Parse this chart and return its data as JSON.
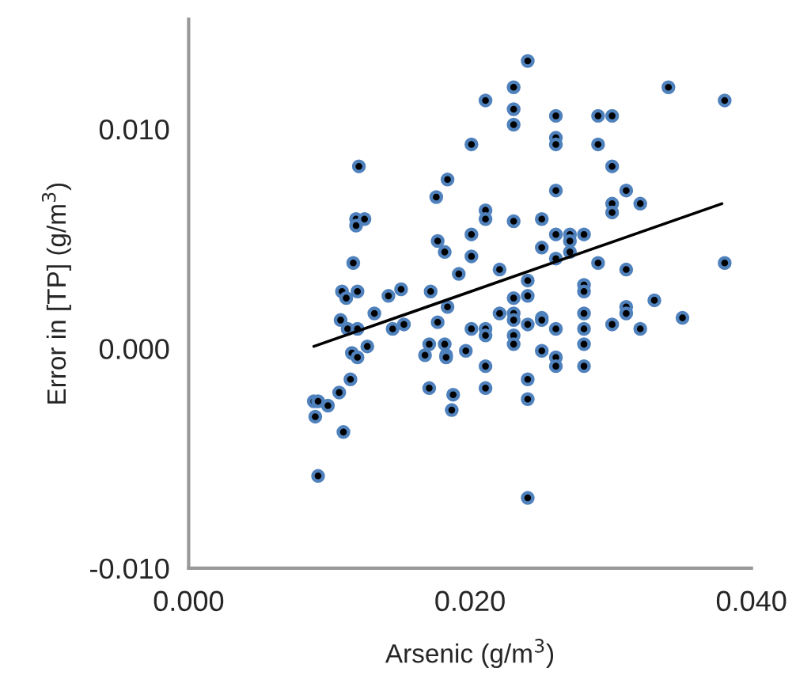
{
  "chart_data": {
    "type": "scatter",
    "xlabel": "Arsenic (g/m$^{3}$)",
    "ylabel": "Error in [TP] (g/m$^{3}$)",
    "xlim": [
      0,
      0.04
    ],
    "ylim": [
      -0.01,
      0.015
    ],
    "xticks": [
      {
        "value": 0,
        "label": "0.000"
      },
      {
        "value": 0.02,
        "label": "0.020"
      },
      {
        "value": 0.04,
        "label": "0.040"
      }
    ],
    "yticks": [
      {
        "value": -0.01,
        "label": "-0.010"
      },
      {
        "value": 0,
        "label": "0.000"
      },
      {
        "value": 0.01,
        "label": "0.010"
      }
    ],
    "grid": false,
    "legend": false,
    "marker": "circle",
    "series": [
      {
        "color": "#4f81bd",
        "x": [
          0.0241,
          0.0231,
          0.0341,
          0.0211,
          0.0381,
          0.0231,
          0.0231,
          0.0261,
          0.0291,
          0.0301,
          0.0201,
          0.0261,
          0.0261,
          0.0291,
          0.0121,
          0.0184,
          0.0301,
          0.0176,
          0.0261,
          0.0311,
          0.0301,
          0.0301,
          0.0321,
          0.0211,
          0.0211,
          0.0231,
          0.0251,
          0.0119,
          0.0125,
          0.0119,
          0.0117,
          0.0177,
          0.0182,
          0.0201,
          0.0201,
          0.0192,
          0.0221,
          0.0251,
          0.0261,
          0.0271,
          0.0281,
          0.0271,
          0.0271,
          0.0261,
          0.0291,
          0.0311,
          0.0381,
          0.0109,
          0.0112,
          0.012,
          0.0142,
          0.0151,
          0.0172,
          0.0132,
          0.0108,
          0.0113,
          0.012,
          0.0145,
          0.0153,
          0.0184,
          0.0177,
          0.0201,
          0.0211,
          0.0211,
          0.0221,
          0.0231,
          0.0231,
          0.0231,
          0.0231,
          0.0231,
          0.0241,
          0.0241,
          0.0241,
          0.0251,
          0.0251,
          0.0261,
          0.0281,
          0.0281,
          0.0281,
          0.0281,
          0.0281,
          0.0301,
          0.0311,
          0.0311,
          0.0321,
          0.0331,
          0.0351,
          0.0127,
          0.0116,
          0.012,
          0.0171,
          0.0168,
          0.0182,
          0.0183,
          0.0183,
          0.0197,
          0.0211,
          0.0251,
          0.0261,
          0.0261,
          0.0281,
          0.0115,
          0.0107,
          0.0089,
          0.0092,
          0.0099,
          0.009,
          0.011,
          0.0171,
          0.0188,
          0.0187,
          0.0211,
          0.0241,
          0.0241,
          0.0092,
          0.0241
        ],
        "values": [
          0.0131,
          0.0119,
          0.0119,
          0.0113,
          0.0113,
          0.0109,
          0.0102,
          0.0106,
          0.0106,
          0.0106,
          0.0093,
          0.0096,
          0.0093,
          0.0093,
          0.0083,
          0.0077,
          0.0083,
          0.0069,
          0.0072,
          0.0072,
          0.0066,
          0.0062,
          0.0066,
          0.0063,
          0.0059,
          0.0058,
          0.0059,
          0.0059,
          0.0059,
          0.0056,
          0.0039,
          0.0049,
          0.0044,
          0.0052,
          0.0042,
          0.0034,
          0.0036,
          0.0046,
          0.0052,
          0.0052,
          0.0052,
          0.0049,
          0.0044,
          0.0041,
          0.0039,
          0.0036,
          0.0039,
          0.0026,
          0.0023,
          0.0026,
          0.0024,
          0.0027,
          0.0026,
          0.0016,
          0.0013,
          0.0009,
          0.0009,
          0.0009,
          0.0011,
          0.0019,
          0.0012,
          0.0009,
          0.0009,
          0.0006,
          0.0016,
          0.0023,
          0.0016,
          0.0013,
          0.0006,
          0.0002,
          0.0031,
          0.0024,
          0.0011,
          0.0014,
          0.0013,
          0.0009,
          0.0029,
          0.0026,
          0.0016,
          0.0009,
          0.0002,
          0.0011,
          0.0019,
          0.0016,
          0.0009,
          0.0022,
          0.0014,
          0.0001,
          -0.0002,
          -0.0004,
          0.0002,
          -0.0003,
          0.0002,
          -0.0003,
          -0.0004,
          -0.0001,
          -0.0008,
          -0.0001,
          -0.0004,
          -0.0008,
          -0.0008,
          -0.0014,
          -0.002,
          -0.0024,
          -0.0024,
          -0.0026,
          -0.0031,
          -0.0038,
          -0.0018,
          -0.0021,
          -0.0028,
          -0.0018,
          -0.0014,
          -0.0023,
          -0.0058,
          -0.0068
        ]
      },
      {
        "type": "line",
        "color": "#000000",
        "marker": "none",
        "x": [
          0.0089,
          0.0379
        ],
        "values": [
          0.0001,
          0.0066
        ]
      }
    ]
  }
}
